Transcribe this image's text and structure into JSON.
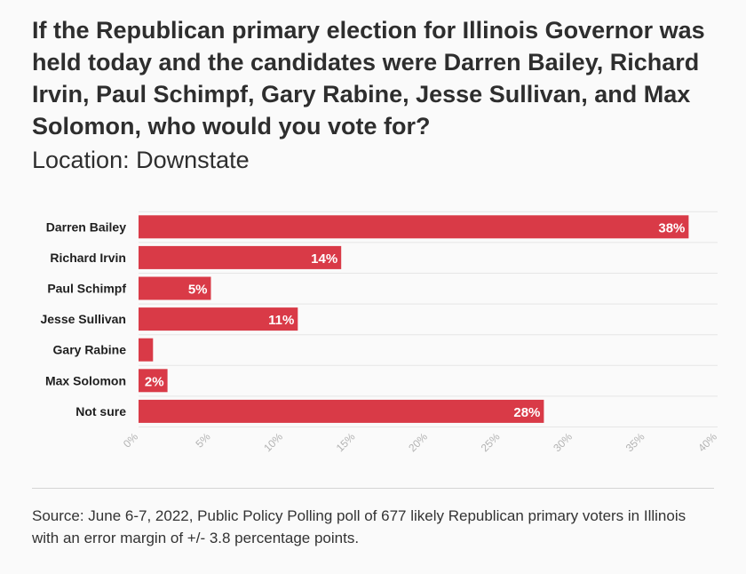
{
  "header": {
    "title": "If the Republican primary election for Illinois Governor was held today and the candidates were Darren Bailey, Richard Irvin, Paul Schimpf, Gary Rabine, Jesse Sullivan, and Max Solomon, who would you vote for?",
    "subtitle": "Location: Downstate"
  },
  "chart_data": {
    "type": "bar",
    "orientation": "horizontal",
    "title": "If the Republican primary election for Illinois Governor was held today and the candidates were Darren Bailey, Richard Irvin, Paul Schimpf, Gary Rabine, Jesse Sullivan, and Max Solomon, who would you vote for?",
    "subtitle": "Location: Downstate",
    "categories": [
      "Darren Bailey",
      "Richard Irvin",
      "Paul Schimpf",
      "Jesse Sullivan",
      "Gary Rabine",
      "Max Solomon",
      "Not sure"
    ],
    "values": [
      38,
      14,
      5,
      11,
      1,
      2,
      28
    ],
    "value_labels": [
      "38%",
      "14%",
      "5%",
      "11%",
      "",
      "2%",
      "28%"
    ],
    "xlim": [
      0,
      40
    ],
    "x_ticks": [
      0,
      5,
      10,
      15,
      20,
      25,
      30,
      35,
      40
    ],
    "x_tick_labels": [
      "0%",
      "5%",
      "10%",
      "15%",
      "20%",
      "25%",
      "30%",
      "35%",
      "40%"
    ],
    "xlabel": "",
    "ylabel": "",
    "grid": true,
    "bar_color": "#d93a47"
  },
  "footer": {
    "source": "Source: June 6-7, 2022, Public Policy Polling poll of 677 likely Republican primary voters in Illinois with an error margin of +/- 3.8 percentage points."
  }
}
